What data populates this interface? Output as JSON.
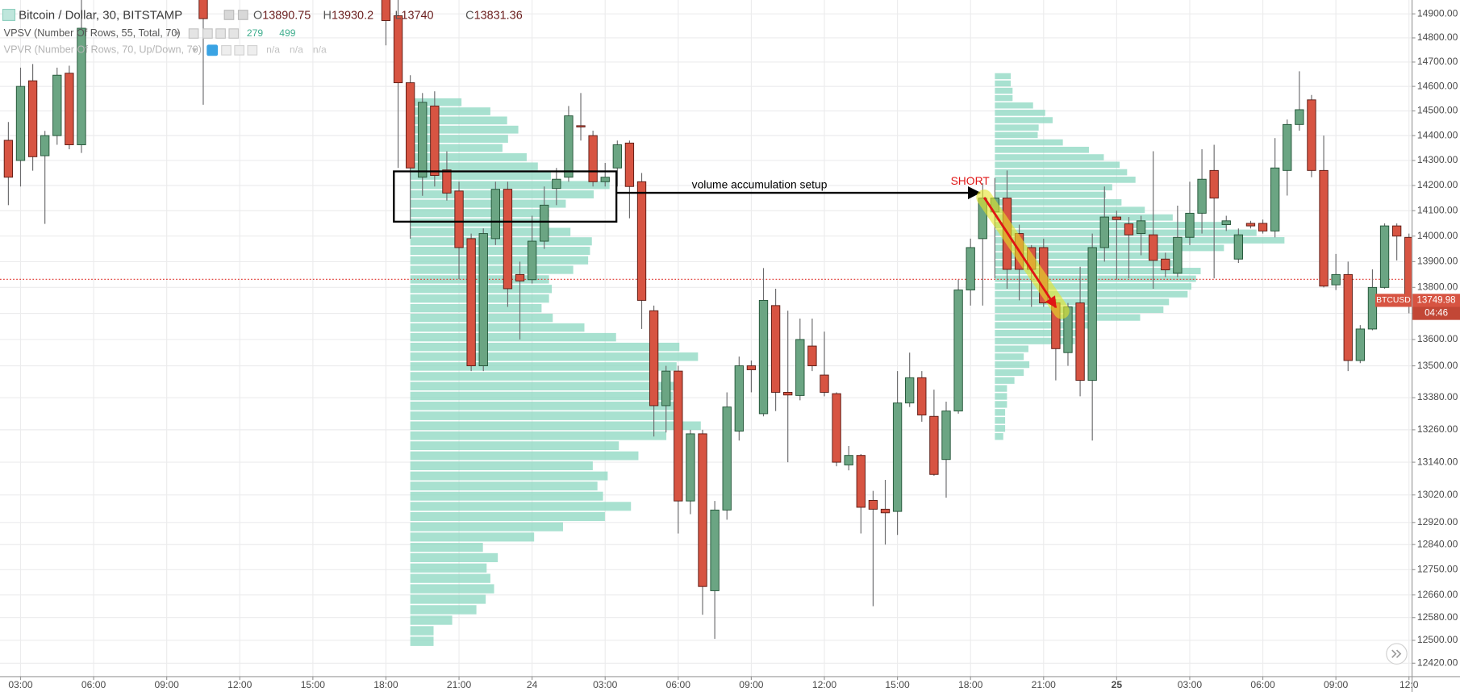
{
  "chart_data": {
    "type": "candlestick",
    "title": "Bitcoin / Dollar, 30, BITSTAMP",
    "legend_ohlc": [
      {
        "key": "O",
        "value": 13890.75
      },
      {
        "key": "H",
        "value": 13930.2
      },
      {
        "key": "L",
        "value": 13740
      },
      {
        "key": "C",
        "value": 13831.36
      }
    ],
    "indicators": [
      {
        "name": "VPSV (Number Of Rows, 55, Total, 70)",
        "values": [
          279,
          499
        ]
      },
      {
        "name": "VPVR (Number Of Rows, 70, Up/Down, 70)",
        "values": [
          "n/a",
          "n/a",
          "n/a"
        ]
      }
    ],
    "x": [
      0,
      1,
      2,
      3,
      4,
      5,
      6,
      16,
      31,
      32,
      33,
      34,
      35,
      36,
      37,
      38,
      39,
      40,
      41,
      42,
      43,
      44,
      45,
      46,
      47,
      48,
      49,
      50,
      51,
      52,
      53,
      54,
      55,
      56,
      57,
      58,
      59,
      60,
      61,
      62,
      63,
      64,
      65,
      66,
      67,
      68,
      69,
      70,
      71,
      72,
      73,
      74,
      75,
      76,
      77,
      78,
      79,
      80,
      81,
      82,
      83,
      84,
      85,
      86,
      87,
      88,
      89,
      90,
      91,
      92,
      93,
      94,
      95,
      96,
      97,
      98,
      99,
      100,
      101,
      102,
      103,
      104,
      105,
      106,
      107,
      108,
      109,
      110,
      111,
      112,
      113,
      114,
      115
    ],
    "open": [
      14381,
      14300,
      14623,
      14319,
      14400,
      14654,
      14363,
      14960,
      14980,
      14892,
      14615,
      14233,
      14520,
      14262,
      14178,
      13990,
      13500,
      13990,
      14185,
      13850,
      13830,
      13980,
      14188,
      14233,
      14440,
      14400,
      14215,
      14270,
      14370,
      14215,
      13710,
      13350,
      13480,
      12998,
      13245,
      12675,
      12965,
      13255,
      13500,
      13320,
      13730,
      13400,
      13388,
      13575,
      13465,
      13395,
      13130,
      13165,
      13000,
      12968,
      12960,
      13360,
      13455,
      13310,
      13150,
      13330,
      13790,
      13990,
      14095,
      14150,
      14010,
      13955,
      13955,
      13740,
      13550,
      13740,
      13445,
      13955,
      14075,
      14048,
      14010,
      14005,
      13910,
      13855,
      13995,
      14090,
      14260,
      14045,
      13910,
      14050,
      14050,
      14020,
      14260,
      14445,
      14545,
      14260,
      13810,
      13850,
      13520,
      13640,
      13800,
      14040,
      13995
    ],
    "high": [
      14455,
      14677,
      14692,
      14419,
      14677,
      14685,
      14990,
      15000,
      15000,
      14960,
      14646,
      14573,
      14580,
      14337,
      14215,
      14010,
      14030,
      14215,
      14215,
      13900,
      14080,
      14196,
      14270,
      14520,
      14573,
      14420,
      14290,
      14380,
      14380,
      14250,
      13730,
      13500,
      13500,
      13260,
      13260,
      12998,
      13400,
      13535,
      13520,
      13875,
      13795,
      13710,
      13680,
      13680,
      13630,
      13400,
      13200,
      13170,
      13035,
      13075,
      13480,
      13550,
      13480,
      13410,
      13365,
      13830,
      13990,
      14210,
      14230,
      14260,
      14045,
      13965,
      13990,
      13755,
      13740,
      13880,
      14010,
      14196,
      14100,
      14075,
      14080,
      14337,
      13935,
      14120,
      14215,
      14345,
      14363,
      14080,
      14030,
      14060,
      14065,
      14390,
      14465,
      14662,
      14565,
      14400,
      13930,
      13900,
      13655,
      13870,
      14050,
      14050,
      14010
    ],
    "low": [
      14122,
      14196,
      14259,
      14048,
      14363,
      14345,
      14330,
      14525,
      14769,
      14270,
      13990,
      14159,
      14196,
      14140,
      13832,
      13480,
      13480,
      13965,
      13725,
      13600,
      13815,
      13950,
      14122,
      14215,
      14380,
      14196,
      14196,
      14196,
      14070,
      13640,
      13235,
      13250,
      12880,
      12950,
      12590,
      12505,
      12930,
      13220,
      13400,
      13310,
      13330,
      13140,
      13370,
      13480,
      13385,
      13125,
      13110,
      12880,
      12620,
      12840,
      12875,
      13345,
      13290,
      13090,
      13010,
      13320,
      13730,
      13730,
      13835,
      13795,
      13750,
      13725,
      13725,
      13445,
      13500,
      13385,
      13220,
      13900,
      13830,
      13835,
      13925,
      13795,
      13840,
      13840,
      13965,
      14010,
      13835,
      14020,
      13895,
      14030,
      14010,
      13995,
      14160,
      14420,
      14233,
      13800,
      13790,
      13480,
      13510,
      13635,
      13795,
      13905,
      13700
    ],
    "close": [
      14233,
      14600,
      14315,
      14400,
      14646,
      14363,
      14840,
      14880,
      14872,
      14615,
      14270,
      14535,
      14240,
      14170,
      13955,
      13500,
      14010,
      14185,
      13795,
      13825,
      13980,
      14122,
      14225,
      14480,
      14435,
      14215,
      14233,
      14363,
      14196,
      13750,
      13350,
      13480,
      12998,
      13245,
      12690,
      12965,
      13345,
      13500,
      13485,
      13750,
      13400,
      13390,
      13600,
      13500,
      13400,
      13140,
      13165,
      12975,
      12968,
      12955,
      13360,
      13455,
      13315,
      13095,
      13330,
      13790,
      13955,
      14150,
      14150,
      13870,
      13870,
      13870,
      13740,
      13565,
      13725,
      13445,
      13955,
      14075,
      14065,
      14005,
      14060,
      13905,
      13868,
      13995,
      14090,
      14225,
      14150,
      14060,
      14005,
      14040,
      14020,
      14270,
      14445,
      14505,
      14260,
      13805,
      13850,
      13520,
      13640,
      13800,
      14040,
      14000,
      13749.98
    ],
    "up_color": "#6ba583",
    "down_color": "#d75442",
    "up_border": "#225437",
    "down_border": "#5b1a13",
    "wick_color": "#6b6b6d",
    "xlim": [
      -0.688,
      115.214
    ],
    "xticks": [
      {
        "value": 1,
        "label": "03:00"
      },
      {
        "value": 7,
        "label": "06:00"
      },
      {
        "value": 13,
        "label": "09:00"
      },
      {
        "value": 19,
        "label": "12:00"
      },
      {
        "value": 25,
        "label": "15:00"
      },
      {
        "value": 31,
        "label": "18:00"
      },
      {
        "value": 37,
        "label": "21:00"
      },
      {
        "value": 43,
        "label": "24"
      },
      {
        "value": 49,
        "label": "03:00"
      },
      {
        "value": 55,
        "label": "06:00"
      },
      {
        "value": 61,
        "label": "09:00"
      },
      {
        "value": 67,
        "label": "12:00"
      },
      {
        "value": 73,
        "label": "15:00"
      },
      {
        "value": 79,
        "label": "18:00"
      },
      {
        "value": 85,
        "label": "21:00"
      },
      {
        "value": 91,
        "label": "25",
        "bold": true
      },
      {
        "value": 97,
        "label": "03:00"
      },
      {
        "value": 103,
        "label": "06:00"
      },
      {
        "value": 109,
        "label": "09:00"
      },
      {
        "value": 115,
        "label": "12:0"
      }
    ],
    "ylim": [
      12375,
      14958
    ],
    "log_scale": true,
    "grid": true,
    "yticks": [
      {
        "value": 14900,
        "label": "14900.00"
      },
      {
        "value": 14800,
        "label": "14800.00"
      },
      {
        "value": 14700,
        "label": "14700.00"
      },
      {
        "value": 14600,
        "label": "14600.00"
      },
      {
        "value": 14500,
        "label": "14500.00"
      },
      {
        "value": 14400,
        "label": "14400.00"
      },
      {
        "value": 14300,
        "label": "14300.00"
      },
      {
        "value": 14200,
        "label": "14200.00"
      },
      {
        "value": 14100,
        "label": "14100.00"
      },
      {
        "value": 14000,
        "label": "14000.00"
      },
      {
        "value": 13900,
        "label": "13900.00"
      },
      {
        "value": 13800,
        "label": "13800.00"
      },
      {
        "value": 13700,
        "label": "13700.00"
      },
      {
        "value": 13600,
        "label": "13600.00"
      },
      {
        "value": 13500,
        "label": "13500.00"
      },
      {
        "value": 13380,
        "label": "13380.00"
      },
      {
        "value": 13260,
        "label": "13260.00"
      },
      {
        "value": 13140,
        "label": "13140.00"
      },
      {
        "value": 13020,
        "label": "13020.00"
      },
      {
        "value": 12920,
        "label": "12920.00"
      },
      {
        "value": 12840,
        "label": "12840.00"
      },
      {
        "value": 12750,
        "label": "12750.00"
      },
      {
        "value": 12660,
        "label": "12660.00"
      },
      {
        "value": 12580,
        "label": "12580.00"
      },
      {
        "value": 12500,
        "label": "12500.00"
      },
      {
        "value": 12420,
        "label": "12420.00"
      }
    ],
    "volume_profiles": [
      {
        "start": 33,
        "price_range": [
          12478,
          14554
        ],
        "color": "#8fd8c3",
        "values": [
          55,
          86,
          104,
          116,
          105,
          99,
          125,
          137,
          151,
          214,
          197,
          167,
          149,
          139,
          172,
          195,
          193,
          191,
          175,
          149,
          152,
          149,
          141,
          153,
          187,
          221,
          289,
          309,
          286,
          262,
          286,
          282,
          289,
          287,
          312,
          275,
          224,
          245,
          196,
          212,
          201,
          207,
          237,
          209,
          164,
          133,
          78,
          94,
          82,
          86,
          90,
          81,
          71,
          45,
          25,
          25
        ]
      },
      {
        "start": 81,
        "price_range": [
          13220,
          14657
        ],
        "color": "#8fd8c3",
        "values": [
          17,
          17,
          19,
          19,
          41,
          54,
          62,
          47,
          46,
          73,
          101,
          117,
          134,
          142,
          151,
          126,
          119,
          136,
          161,
          191,
          249,
          281,
          311,
          246,
          201,
          191,
          221,
          216,
          211,
          207,
          187,
          181,
          156,
          106,
          96,
          86,
          36,
          31,
          37,
          31,
          21,
          13,
          13,
          13,
          11,
          11,
          11,
          9
        ]
      }
    ],
    "price_line_color": "#e0302a",
    "symbol_label": "BTCUSD",
    "countdown": "04:46",
    "annotations": {
      "setup": "volume accumulation setup",
      "short": "SHORT"
    }
  }
}
